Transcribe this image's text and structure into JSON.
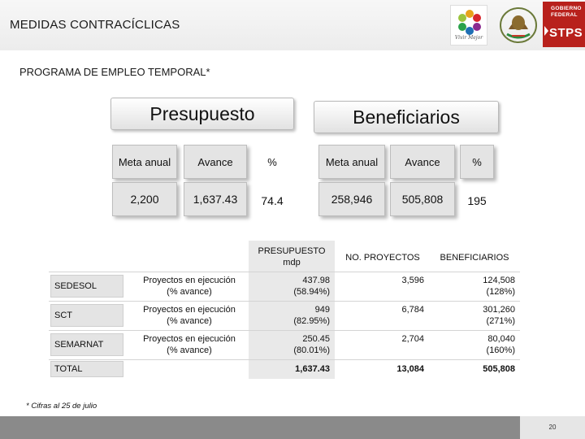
{
  "slide": {
    "title": "MEDIDAS CONTRACÍCLICAS",
    "subtitle": "PROGRAMA DE EMPLEO TEMPORAL*"
  },
  "logos": {
    "vm_caption": "Vivir Mejor",
    "gov_line1": "GOBIERNO",
    "gov_line2": "FEDERAL",
    "stps": "STPS"
  },
  "summary": {
    "presupuesto": {
      "header": "Presupuesto",
      "meta_label": "Meta anual",
      "avance_label": "Avance",
      "pct_label": "%",
      "meta_value": "2,200",
      "avance_value": "1,637.43",
      "pct_value": "74.4"
    },
    "beneficiarios": {
      "header": "Beneficiarios",
      "meta_label": "Meta anual",
      "avance_label": "Avance",
      "pct_label": "%",
      "meta_value": "258,946",
      "avance_value": "505,808",
      "pct_value": "195"
    }
  },
  "table": {
    "headers": {
      "presupuesto": "PRESUPUESTO",
      "presupuesto_unit": "mdp",
      "proyectos": "NO. PROYECTOS",
      "beneficiarios": "BENEFICIARIOS"
    },
    "rows": [
      {
        "label": "SEDESOL",
        "desc1": "Proyectos en ejecución",
        "desc2": "(% avance)",
        "pres1": "437.98",
        "pres2": "(58.94%)",
        "proyectos": "3,596",
        "ben1": "124,508",
        "ben2": "(128%)"
      },
      {
        "label": "SCT",
        "desc1": "Proyectos en ejecución",
        "desc2": "(% avance)",
        "pres1": "949",
        "pres2": "(82.95%)",
        "proyectos": "6,784",
        "ben1": "301,260",
        "ben2": "(271%)"
      },
      {
        "label": "SEMARNAT",
        "desc1": "Proyectos en ejecución",
        "desc2": "(% avance)",
        "pres1": "250.45",
        "pres2": "(80.01%)",
        "proyectos": "2,704",
        "ben1": "80,040",
        "ben2": "(160%)"
      }
    ],
    "total": {
      "label": "TOTAL",
      "pres": "1,637.43",
      "proyectos": "13,084",
      "ben": "505,808"
    }
  },
  "footnote": "* Cifras al 25 de julio",
  "page_number": "20"
}
